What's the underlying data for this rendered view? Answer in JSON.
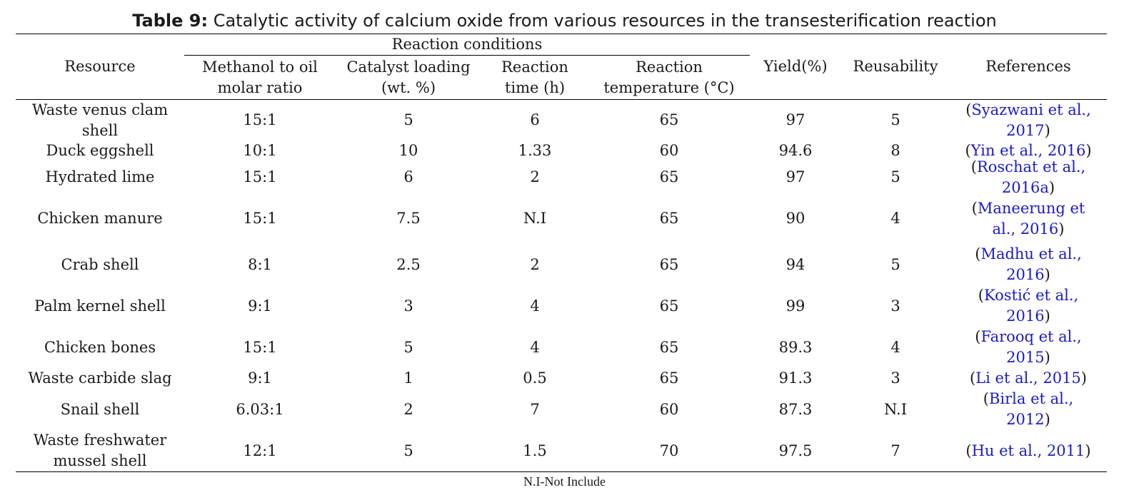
{
  "caption": {
    "label": "Table 9:",
    "text": " Catalytic activity of calcium oxide from various resources in the transesterification reaction"
  },
  "header": {
    "resource": "Resource",
    "group": "Reaction conditions",
    "ratio": [
      "Methanol to oil",
      "molar ratio"
    ],
    "loading": [
      "Catalyst loading",
      "(wt. %)"
    ],
    "time": [
      "Reaction",
      "time (h)"
    ],
    "temperature": [
      "Reaction",
      "temperature (°C)"
    ],
    "yield": "Yield(%)",
    "reusability": "Reusability",
    "references": "References"
  },
  "rows": [
    {
      "resource": [
        "Waste venus clam",
        "shell"
      ],
      "ratio": "15:1",
      "loading": "5",
      "time": "6",
      "temperature": "65",
      "yield": "97",
      "reusability": "5",
      "reference": [
        "Syazwani et al.,",
        "2017"
      ]
    },
    {
      "resource": [
        "Duck eggshell"
      ],
      "ratio": "10:1",
      "loading": "10",
      "time": "1.33",
      "temperature": "60",
      "yield": "94.6",
      "reusability": "8",
      "reference": [
        "Yin et al., 2016"
      ]
    },
    {
      "resource": [
        "Hydrated lime"
      ],
      "ratio": "15:1",
      "loading": "6",
      "time": "2",
      "temperature": "65",
      "yield": "97",
      "reusability": "5",
      "reference": [
        "Roschat et al.,",
        "2016a"
      ]
    },
    {
      "resource": [
        "Chicken manure"
      ],
      "ratio": "15:1",
      "loading": "7.5",
      "time": "N.I",
      "temperature": "65",
      "yield": "90",
      "reusability": "4",
      "reference": [
        "Maneerung et",
        "al., 2016"
      ]
    },
    {
      "resource": [
        "Crab shell"
      ],
      "ratio": "8:1",
      "loading": "2.5",
      "time": "2",
      "temperature": "65",
      "yield": "94",
      "reusability": "5",
      "reference": [
        "Madhu et al.,",
        "2016"
      ]
    },
    {
      "resource": [
        "Palm kernel shell"
      ],
      "ratio": "9:1",
      "loading": "3",
      "time": "4",
      "temperature": "65",
      "yield": "99",
      "reusability": "3",
      "reference": [
        "Kostić et al.,",
        "2016"
      ]
    },
    {
      "resource": [
        "Chicken bones"
      ],
      "ratio": "15:1",
      "loading": "5",
      "time": "4",
      "temperature": "65",
      "yield": "89.3",
      "reusability": "4",
      "reference": [
        "Farooq et al.,",
        "2015"
      ]
    },
    {
      "resource": [
        "Waste carbide slag"
      ],
      "ratio": "9:1",
      "loading": "1",
      "time": "0.5",
      "temperature": "65",
      "yield": "91.3",
      "reusability": "3",
      "reference": [
        "Li et al., 2015"
      ]
    },
    {
      "resource": [
        "Snail shell"
      ],
      "ratio": "6.03:1",
      "loading": "2",
      "time": "7",
      "temperature": "60",
      "yield": "87.3",
      "reusability": "N.I",
      "reference": [
        "Birla et al.,",
        "2012"
      ]
    },
    {
      "resource": [
        "Waste freshwater",
        "mussel shell"
      ],
      "ratio": "12:1",
      "loading": "5",
      "time": "1.5",
      "temperature": "70",
      "yield": "97.5",
      "reusability": "7",
      "reference": [
        "Hu et al., 2011"
      ]
    }
  ],
  "footnote": "N.I-Not Include"
}
